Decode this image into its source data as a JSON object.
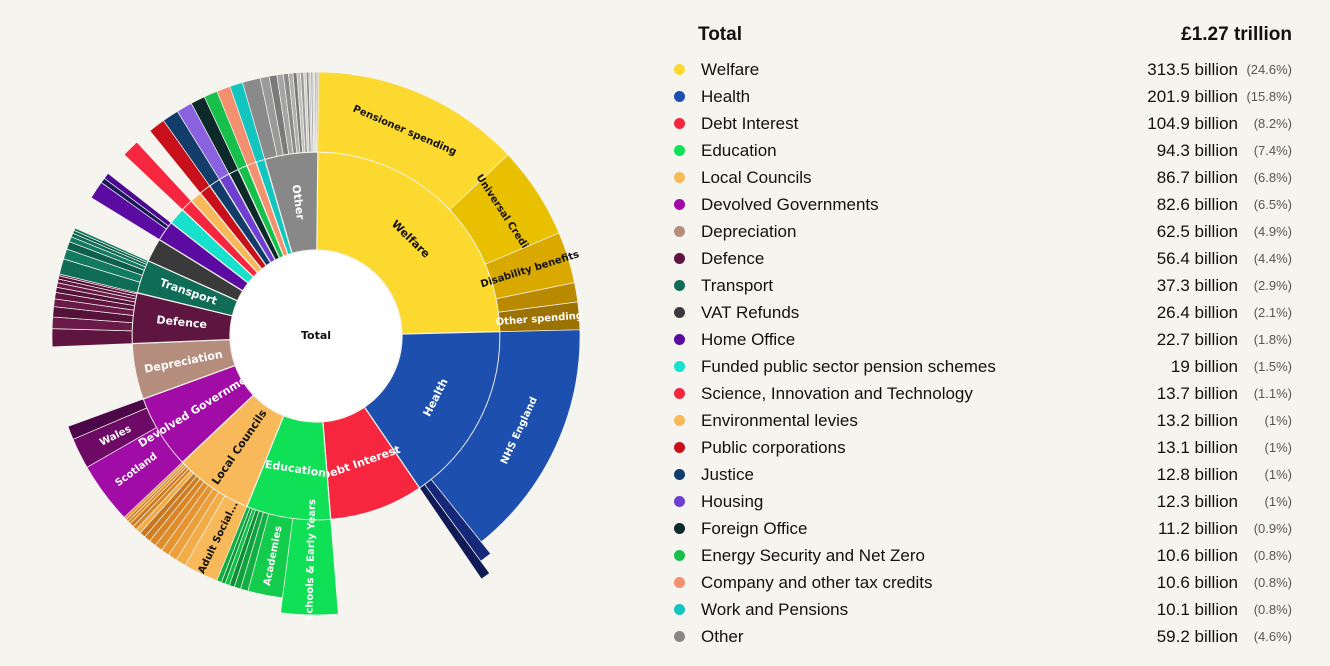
{
  "legend": {
    "title": "Total",
    "total_value": "£1.27 trillion",
    "items": [
      {
        "name": "Welfare",
        "value": "313.5 billion",
        "pct": "(24.6%)",
        "color": "#fcd92e"
      },
      {
        "name": "Health",
        "value": "201.9 billion",
        "pct": "(15.8%)",
        "color": "#1d4fae"
      },
      {
        "name": "Debt Interest",
        "value": "104.9 billion",
        "pct": "(8.2%)",
        "color": "#f5263e"
      },
      {
        "name": "Education",
        "value": "94.3 billion",
        "pct": "(7.4%)",
        "color": "#0fe055"
      },
      {
        "name": "Local Councils",
        "value": "86.7 billion",
        "pct": "(6.8%)",
        "color": "#f7b95a"
      },
      {
        "name": "Devolved Governments",
        "value": "82.6 billion",
        "pct": "(6.5%)",
        "color": "#a20ca6"
      },
      {
        "name": "Depreciation",
        "value": "62.5 billion",
        "pct": "(4.9%)",
        "color": "#b48d7c"
      },
      {
        "name": "Defence",
        "value": "56.4 billion",
        "pct": "(4.4%)",
        "color": "#5e1640"
      },
      {
        "name": "Transport",
        "value": "37.3 billion",
        "pct": "(2.9%)",
        "color": "#0f6c56"
      },
      {
        "name": "VAT Refunds",
        "value": "26.4 billion",
        "pct": "(2.1%)",
        "color": "#3a3a3a"
      },
      {
        "name": "Home Office",
        "value": "22.7 billion",
        "pct": "(1.8%)",
        "color": "#5b0aa2"
      },
      {
        "name": "Funded public sector pension schemes",
        "value": "19 billion",
        "pct": "(1.5%)",
        "color": "#17e0cd"
      },
      {
        "name": "Science, Innovation and Technology",
        "value": "13.7 billion",
        "pct": "(1.1%)",
        "color": "#f5263e"
      },
      {
        "name": "Environmental levies",
        "value": "13.2 billion",
        "pct": "(1%)",
        "color": "#f7b95a"
      },
      {
        "name": "Public corporations",
        "value": "13.1 billion",
        "pct": "(1%)",
        "color": "#c8101a"
      },
      {
        "name": "Justice",
        "value": "12.8 billion",
        "pct": "(1%)",
        "color": "#123d6a"
      },
      {
        "name": "Housing",
        "value": "12.3 billion",
        "pct": "(1%)",
        "color": "#6e3ed0"
      },
      {
        "name": "Foreign Office",
        "value": "11.2 billion",
        "pct": "(0.9%)",
        "color": "#0d2a2a"
      },
      {
        "name": "Energy Security and Net Zero",
        "value": "10.6 billion",
        "pct": "(0.8%)",
        "color": "#16c04a"
      },
      {
        "name": "Company and other tax credits",
        "value": "10.6 billion",
        "pct": "(0.8%)",
        "color": "#f39070"
      },
      {
        "name": "Work and Pensions",
        "value": "10.1 billion",
        "pct": "(0.8%)",
        "color": "#12c6bf"
      },
      {
        "name": "Other",
        "value": "59.2 billion",
        "pct": "(4.6%)",
        "color": "#888888"
      }
    ]
  },
  "chart_data": {
    "type": "sunburst",
    "center_label": "Total",
    "total_billions": 1273,
    "categories": [
      {
        "name": "Welfare",
        "label": "Welfare",
        "value": 313.5,
        "color": "#fcd92e",
        "children": [
          {
            "name": "Pensioner spending",
            "label": "Pensioner spending",
            "value": 165,
            "color": "#fcd92e"
          },
          {
            "name": "Universal Credit",
            "label": "Universal Credit",
            "value": 72,
            "color": "#e8c000"
          },
          {
            "name": "Disability benefits",
            "label": "Disability benefits",
            "value": 40,
            "color": "#d9a900"
          },
          {
            "name": "",
            "label": "",
            "value": 15,
            "color": "#b98900"
          },
          {
            "name": "Other spending",
            "label": "Other spending",
            "value": 21.5,
            "color": "#9c7204"
          }
        ]
      },
      {
        "name": "Health",
        "label": "Health",
        "value": 201.9,
        "color": "#1d4fae",
        "children": [
          {
            "name": "NHS England",
            "label": "NHS England",
            "value": 186,
            "color": "#1d4fae"
          },
          {
            "name": "",
            "label": "",
            "value": 9,
            "color": "#16287a",
            "ext": 15
          },
          {
            "name": "",
            "label": "",
            "value": 6.9,
            "color": "#101a55",
            "ext": 30
          }
        ]
      },
      {
        "name": "Debt Interest",
        "label": "Debt Interest",
        "value": 104.9,
        "color": "#f5263e",
        "children": []
      },
      {
        "name": "Education",
        "label": "Education",
        "value": 94.3,
        "color": "#0fe055",
        "children": [
          {
            "name": "Schools & Early Years",
            "label": "Schools & Early Years",
            "value": 42,
            "color": "#0fe055",
            "ext": 15
          },
          {
            "name": "Academies",
            "label": "Academies",
            "value": 27,
            "color": "#14cc4c"
          },
          {
            "name": "",
            "label": "",
            "value": 6,
            "color": "#12b042"
          },
          {
            "name": "",
            "label": "",
            "value": 5,
            "color": "#0ea33d"
          },
          {
            "name": "",
            "label": "",
            "value": 4,
            "color": "#0b8f35"
          },
          {
            "name": "",
            "label": "",
            "value": 3.5,
            "color": "#0fc049"
          },
          {
            "name": "",
            "label": "",
            "value": 3,
            "color": "#0a9a38"
          },
          {
            "name": "",
            "label": "",
            "value": 3.8,
            "color": "#12b042"
          }
        ]
      },
      {
        "name": "Local Councils",
        "label": "Local Councils",
        "value": 86.7,
        "color": "#f7b95a",
        "children": [
          {
            "name": "Adult Social Care",
            "label": "Adult Social...",
            "value": 27,
            "color": "#f7b95a"
          },
          {
            "name": "",
            "label": "",
            "value": 8,
            "color": "#f2ad48"
          },
          {
            "name": "",
            "label": "",
            "value": 7,
            "color": "#ec9f3a"
          },
          {
            "name": "",
            "label": "",
            "value": 6.5,
            "color": "#e59430"
          },
          {
            "name": "",
            "label": "",
            "value": 6,
            "color": "#df8c2b"
          },
          {
            "name": "",
            "label": "",
            "value": 5.5,
            "color": "#d98526"
          },
          {
            "name": "",
            "label": "",
            "value": 5,
            "color": "#cf7d22"
          },
          {
            "name": "",
            "label": "",
            "value": 4.5,
            "color": "#c7761e"
          },
          {
            "name": "",
            "label": "",
            "value": 4,
            "color": "#f2ad48"
          },
          {
            "name": "",
            "label": "",
            "value": 3.5,
            "color": "#d98526"
          },
          {
            "name": "",
            "label": "",
            "value": 3,
            "color": "#c7761e"
          },
          {
            "name": "",
            "label": "",
            "value": 2.5,
            "color": "#df8c2b"
          },
          {
            "name": "",
            "label": "",
            "value": 2,
            "color": "#cf7d22"
          },
          {
            "name": "",
            "label": "",
            "value": 2.2,
            "color": "#e59430"
          }
        ]
      },
      {
        "name": "Devolved Governments",
        "label": "Devolved Governments",
        "value": 82.6,
        "color": "#a20ca6",
        "children": [
          {
            "name": "Scotland",
            "label": "Scotland",
            "value": 48,
            "color": "#a20ca6"
          },
          {
            "name": "Wales",
            "label": "Wales",
            "value": 24,
            "color": "#6c0a66"
          },
          {
            "name": "",
            "label": "",
            "value": 10.6,
            "color": "#4c0748"
          }
        ]
      },
      {
        "name": "Depreciation",
        "label": "Depreciation",
        "value": 62.5,
        "color": "#b48d7c",
        "children": []
      },
      {
        "name": "Defence",
        "label": "Defence",
        "value": 56.4,
        "color": "#5e1640",
        "children": [
          {
            "name": "",
            "label": "",
            "value": 14,
            "color": "#5e1640"
          },
          {
            "name": "",
            "label": "",
            "value": 9,
            "color": "#6a1a48"
          },
          {
            "name": "",
            "label": "",
            "value": 8,
            "color": "#541238"
          },
          {
            "name": "",
            "label": "",
            "value": 6,
            "color": "#6a1a48"
          },
          {
            "name": "",
            "label": "",
            "value": 5,
            "color": "#5e1640"
          },
          {
            "name": "",
            "label": "",
            "value": 4,
            "color": "#541238"
          },
          {
            "name": "",
            "label": "",
            "value": 3.5,
            "color": "#6a1a48"
          },
          {
            "name": "",
            "label": "",
            "value": 3,
            "color": "#5e1640"
          },
          {
            "name": "",
            "label": "",
            "value": 2.5,
            "color": "#541238"
          },
          {
            "name": "",
            "label": "",
            "value": 1.4,
            "color": "#6a1a48"
          }
        ]
      },
      {
        "name": "Transport",
        "label": "Transport",
        "value": 37.3,
        "color": "#0f6c56",
        "children": [
          {
            "name": "",
            "label": "",
            "value": 12,
            "color": "#0f6c56"
          },
          {
            "name": "",
            "label": "",
            "value": 8,
            "color": "#127a61"
          },
          {
            "name": "",
            "label": "",
            "value": 6,
            "color": "#0d5e4b"
          },
          {
            "name": "",
            "label": "",
            "value": 4,
            "color": "#127a61"
          },
          {
            "name": "",
            "label": "",
            "value": 3,
            "color": "#0f6c56"
          },
          {
            "name": "",
            "label": "",
            "value": 2.3,
            "color": "#0d5e4b"
          },
          {
            "name": "",
            "label": "",
            "value": 2,
            "color": "#127a61"
          }
        ]
      },
      {
        "name": "VAT Refunds",
        "label": "",
        "value": 26.4,
        "color": "#3a3a3a",
        "children": []
      },
      {
        "name": "Home Office",
        "label": "",
        "value": 22.7,
        "color": "#5b0aa2",
        "children": [
          {
            "name": "",
            "label": "",
            "value": 14,
            "color": "#5b0aa2"
          },
          {
            "name": "",
            "label": "",
            "value": 4,
            "color": "#1a1a5a"
          },
          {
            "name": "",
            "label": "",
            "value": 4.7,
            "color": "#4a0890"
          }
        ]
      },
      {
        "name": "Funded public sector pension schemes",
        "label": "",
        "value": 19,
        "color": "#17e0cd",
        "children": []
      },
      {
        "name": "Science, Innovation and Technology",
        "label": "",
        "value": 13.7,
        "color": "#f5263e",
        "children": [
          {
            "name": "",
            "label": "",
            "value": 13.7,
            "color": "#f5263e"
          }
        ]
      },
      {
        "name": "Environmental levies",
        "label": "",
        "value": 13.2,
        "color": "#f7b95a",
        "children": []
      },
      {
        "name": "Public corporations",
        "label": "",
        "value": 13.1,
        "color": "#c8101a",
        "children": [
          {
            "name": "",
            "label": "",
            "value": 13.1,
            "color": "#c8101a"
          }
        ]
      },
      {
        "name": "Justice",
        "label": "",
        "value": 12.8,
        "color": "#123d6a",
        "children": [
          {
            "name": "",
            "label": "",
            "value": 12.8,
            "color": "#123d6a"
          }
        ]
      },
      {
        "name": "Housing",
        "label": "",
        "value": 12.3,
        "color": "#6e3ed0",
        "children": [
          {
            "name": "",
            "label": "",
            "value": 12.3,
            "color": "#8a62e0"
          }
        ]
      },
      {
        "name": "Foreign Office",
        "label": "",
        "value": 11.2,
        "color": "#0d2a2a",
        "children": [
          {
            "name": "",
            "label": "",
            "value": 11.2,
            "color": "#0d2a2a"
          }
        ]
      },
      {
        "name": "Energy Security and Net Zero",
        "label": "",
        "value": 10.6,
        "color": "#16c04a",
        "children": [
          {
            "name": "",
            "label": "",
            "value": 10.6,
            "color": "#16c04a"
          }
        ]
      },
      {
        "name": "Company and other tax credits",
        "label": "",
        "value": 10.6,
        "color": "#f39070",
        "children": [
          {
            "name": "",
            "label": "",
            "value": 10.6,
            "color": "#f39070"
          }
        ]
      },
      {
        "name": "Work and Pensions",
        "label": "",
        "value": 10.1,
        "color": "#12c6bf",
        "children": [
          {
            "name": "",
            "label": "",
            "value": 10.1,
            "color": "#12c6bf"
          }
        ]
      },
      {
        "name": "Other",
        "label": "Other",
        "value": 59.2,
        "color": "#888888",
        "children": [
          {
            "name": "",
            "label": "",
            "value": 14,
            "color": "#8a8a8a"
          },
          {
            "name": "",
            "label": "",
            "value": 7,
            "color": "#9a9a9a"
          },
          {
            "name": "",
            "label": "",
            "value": 6,
            "color": "#7a7a7a"
          },
          {
            "name": "",
            "label": "",
            "value": 5,
            "color": "#a5a5a5"
          },
          {
            "name": "",
            "label": "",
            "value": 4,
            "color": "#8a8a8a"
          },
          {
            "name": "",
            "label": "",
            "value": 3.5,
            "color": "#b0b0b0"
          },
          {
            "name": "",
            "label": "",
            "value": 3,
            "color": "#7a7a7a"
          },
          {
            "name": "",
            "label": "",
            "value": 2.7,
            "color": "#c0c0c0"
          },
          {
            "name": "",
            "label": "",
            "value": 2.5,
            "color": "#9a9a9a"
          },
          {
            "name": "",
            "label": "",
            "value": 2,
            "color": "#d0d0d0"
          },
          {
            "name": "",
            "label": "",
            "value": 2,
            "color": "#8a8a8a"
          },
          {
            "name": "",
            "label": "",
            "value": 1.5,
            "color": "#c8c8c8"
          },
          {
            "name": "",
            "label": "",
            "value": 1.5,
            "color": "#a5a5a5"
          },
          {
            "name": "",
            "label": "",
            "value": 1.5,
            "color": "#d8d8d8"
          },
          {
            "name": "",
            "label": "",
            "value": 1,
            "color": "#7a7a7a"
          },
          {
            "name": "",
            "label": "",
            "value": 1,
            "color": "#b0b0b0"
          },
          {
            "name": "",
            "label": "",
            "value": 1,
            "color": "#9a9a9a"
          }
        ]
      }
    ]
  }
}
